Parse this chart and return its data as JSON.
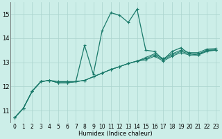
{
  "x": [
    0,
    1,
    2,
    3,
    4,
    5,
    6,
    7,
    8,
    9,
    10,
    11,
    12,
    13,
    14,
    15,
    16,
    17,
    18,
    19,
    20,
    21,
    22,
    23
  ],
  "line_main": [
    10.7,
    11.1,
    11.8,
    12.2,
    12.25,
    12.2,
    12.2,
    12.2,
    13.7,
    12.5,
    14.3,
    15.05,
    14.95,
    14.65,
    15.2,
    13.5,
    13.45,
    13.1,
    13.45,
    13.6,
    13.35,
    13.3,
    13.5,
    13.5
  ],
  "line_a": [
    10.7,
    11.1,
    11.8,
    12.2,
    12.25,
    12.15,
    12.15,
    12.2,
    12.25,
    12.4,
    12.55,
    12.7,
    12.82,
    12.95,
    13.05,
    13.1,
    13.25,
    13.05,
    13.25,
    13.4,
    13.3,
    13.3,
    13.45,
    13.5
  ],
  "line_b": [
    10.7,
    11.1,
    11.8,
    12.2,
    12.25,
    12.15,
    12.15,
    12.2,
    12.25,
    12.4,
    12.55,
    12.7,
    12.82,
    12.95,
    13.05,
    13.15,
    13.3,
    13.1,
    13.3,
    13.45,
    13.35,
    13.35,
    13.5,
    13.52
  ],
  "line_c": [
    10.7,
    11.1,
    11.8,
    12.2,
    12.25,
    12.15,
    12.15,
    12.2,
    12.25,
    12.4,
    12.55,
    12.7,
    12.82,
    12.95,
    13.05,
    13.2,
    13.35,
    13.15,
    13.35,
    13.5,
    13.4,
    13.4,
    13.55,
    13.57
  ],
  "line_color": "#1a7a6a",
  "bg_color": "#cceee8",
  "grid_color": "#aad4ce",
  "xlabel": "Humidex (Indice chaleur)",
  "ylim": [
    10.5,
    15.5
  ],
  "xlim": [
    -0.5,
    23.5
  ],
  "yticks": [
    11,
    12,
    13,
    14,
    15
  ],
  "xticks": [
    0,
    1,
    2,
    3,
    4,
    5,
    6,
    7,
    8,
    9,
    10,
    11,
    12,
    13,
    14,
    15,
    16,
    17,
    18,
    19,
    20,
    21,
    22,
    23
  ],
  "xlabel_fontsize": 6.0,
  "tick_fontsize": 5.5
}
